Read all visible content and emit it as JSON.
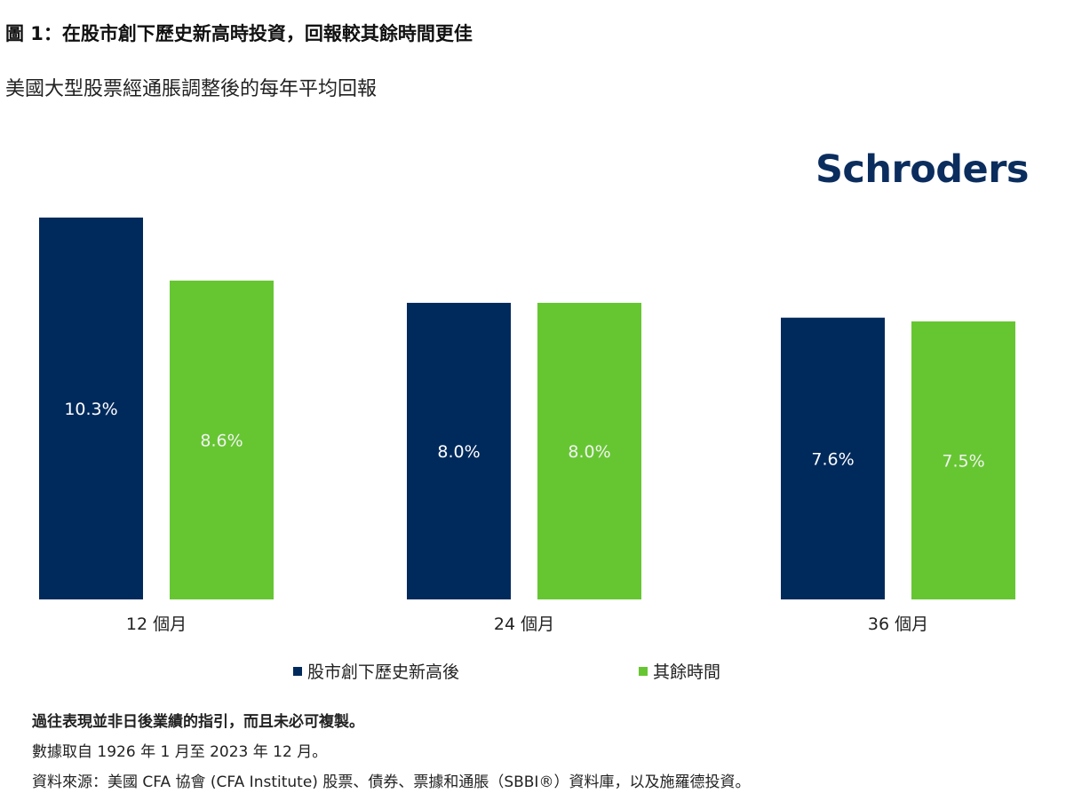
{
  "header": {
    "title": "圖 1：在股市創下歷史新高時投資，回報較其餘時間更佳",
    "subtitle": "美國大型股票經通脹調整後的每年平均回報",
    "brand": "Schroders"
  },
  "colors": {
    "series_dark": "#002a5c",
    "series_green": "#66c632",
    "brand": "#0b2d5e"
  },
  "chart_data": {
    "type": "bar",
    "categories": [
      "12 個月",
      "24 個月",
      "36 個月"
    ],
    "series": [
      {
        "name": "股市創下歷史新高後",
        "values": [
          10.3,
          8.0,
          7.6
        ],
        "labels": [
          "10.3%",
          "8.0%",
          "7.6%"
        ]
      },
      {
        "name": "其餘時間",
        "values": [
          8.6,
          8.0,
          7.5
        ],
        "labels": [
          "8.6%",
          "8.0%",
          "7.5%"
        ]
      }
    ],
    "ylim": [
      0,
      10.3
    ],
    "grid": false,
    "legend": "bottom"
  },
  "legend": {
    "item1": "股市創下歷史新高後",
    "item2": "其餘時間"
  },
  "notes": {
    "disclaimer": "過往表現並非日後業績的指引，而且未必可複製。",
    "period": "數據取自 1926 年 1 月至 2023 年 12 月。",
    "source": "資料來源：美國 CFA 協會 (CFA Institute) 股票、債券、票據和通脹（SBBI®）資料庫，以及施羅德投資。"
  }
}
